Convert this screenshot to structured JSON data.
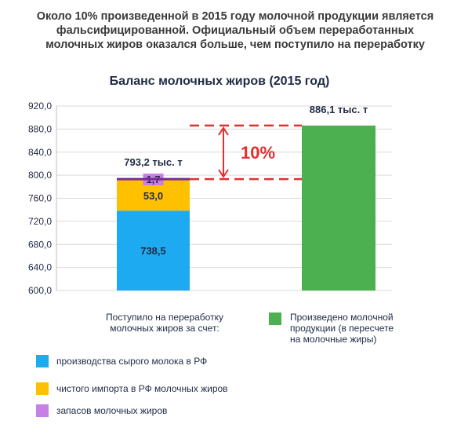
{
  "headline": [
    "Около 10% произведенной в 2015 году молочной продукции является",
    "фальсифицированной. Официальный объем переработанных",
    "молочных жиров оказался больше, чем поступило на переработку"
  ],
  "chart_data": {
    "type": "bar",
    "title": "Баланс молочных жиров (2015 год)",
    "ylim": [
      600,
      920
    ],
    "yticks": [
      "600,0",
      "640,0",
      "680,0",
      "720,0",
      "760,0",
      "800,0",
      "840,0",
      "880,0",
      "920,0"
    ],
    "grid": true,
    "categories": [
      "Поступило на переработку молочных жиров за счет:",
      "Произведено молочной продукции (в пересчете на молочные жиры)"
    ],
    "stack": [
      {
        "name": "производства сырого молока в РФ",
        "value": 738.5,
        "label": "738,5",
        "color": "#1eaaf1"
      },
      {
        "name": "чистого импорта в РФ молочных жиров",
        "value": 53.0,
        "label": "53,0",
        "color": "#ffc000"
      },
      {
        "name": "запасов молочных жиров",
        "value": 1.7,
        "label": "1,7",
        "color": "#c680e6"
      }
    ],
    "stack_total_label": "793,2 тыс. т",
    "produced": {
      "value": 886.1,
      "label": "886,1 тыс. т",
      "color": "#4caf50"
    },
    "gap_label": "10%",
    "gap_color": "#e03030",
    "line_color": "#7b2b8f"
  },
  "legend": {
    "left_caption": [
      "Поступило на переработку",
      "молочных жиров за счет:"
    ],
    "right_caption": [
      "Произведено молочной",
      "продукции (в пересчете",
      "на молочные жиры)"
    ]
  }
}
